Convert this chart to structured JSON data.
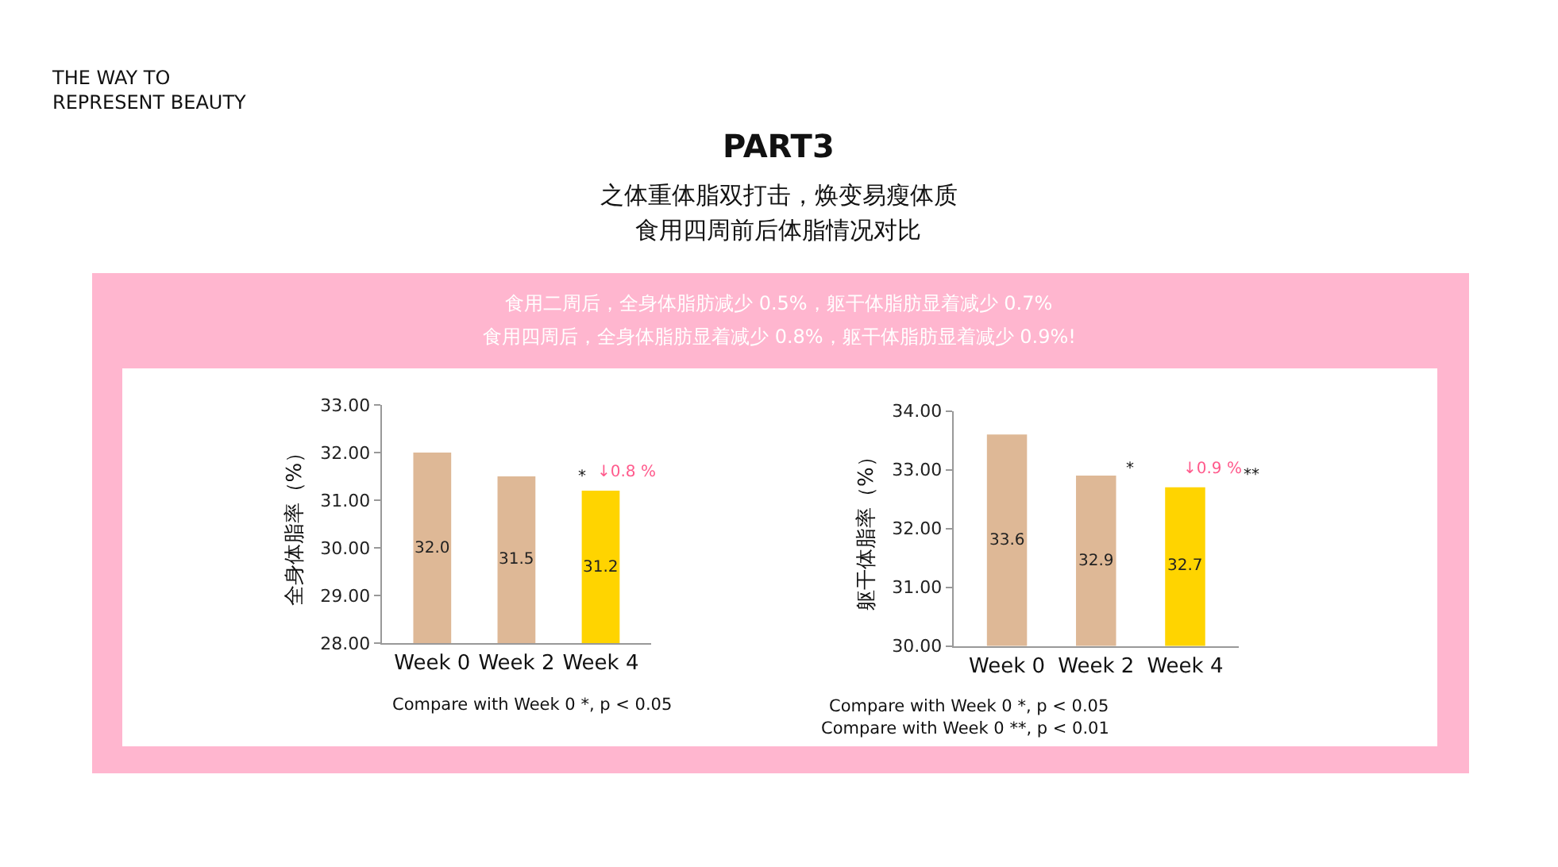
{
  "chart_data": [
    {
      "type": "bar",
      "ylabel": "全身体脂率（%）",
      "categories": [
        "Week 0",
        "Week 2",
        "Week 4"
      ],
      "values": [
        32.0,
        31.5,
        31.2
      ],
      "value_labels": [
        "32.0",
        "31.5",
        "31.2"
      ],
      "colors": [
        "#deb896",
        "#deb896",
        "#ffd400"
      ],
      "ylim": [
        28,
        33
      ],
      "yticks": [
        {
          "value": 28,
          "label": "28.00"
        },
        {
          "value": 29,
          "label": "29.00"
        },
        {
          "value": 30,
          "label": "30.00"
        },
        {
          "value": 31,
          "label": "31.00"
        },
        {
          "value": 32,
          "label": "32.00"
        },
        {
          "value": 33,
          "label": "33.00"
        }
      ],
      "annotations": [
        "THE WAY TO\nREPRESENT BEAUTY",
        "PART3",
        "之体重体脂双打击，焕变易瘦体质",
        "食用四周前后体脂情况对比",
        "食用二周后，全身体脂肪减少 0.5%，躯干体脂肪显着减少 0.7%",
        "食用四周后，全身体脂肪显着减少 0.8%，躯干体脂肪显着减少 0.9%!",
        "Compare with Week 0 *, p < 0.05",
        "*",
        "↓0.8 %"
      ]
    },
    {
      "type": "bar",
      "ylabel": "躯干体脂率（%）",
      "categories": [
        "Week 0",
        "Week 2",
        "Week 4"
      ],
      "values": [
        33.6,
        32.9,
        32.7
      ],
      "value_labels": [
        "33.6",
        "32.9",
        "32.7"
      ],
      "colors": [
        "#deb896",
        "#deb896",
        "#ffd400"
      ],
      "ylim": [
        30,
        34
      ],
      "yticks": [
        {
          "value": 30,
          "label": "30.00"
        },
        {
          "value": 31,
          "label": "31.00"
        },
        {
          "value": 32,
          "label": "32.00"
        },
        {
          "value": 33,
          "label": "33.00"
        },
        {
          "value": 34,
          "label": "34.00"
        }
      ],
      "annotations": [
        "Compare with Week 0 *, p < 0.05",
        "Compare with Week 0 **, p < 0.01",
        "*",
        "↓0.9 %",
        "**"
      ]
    }
  ]
}
